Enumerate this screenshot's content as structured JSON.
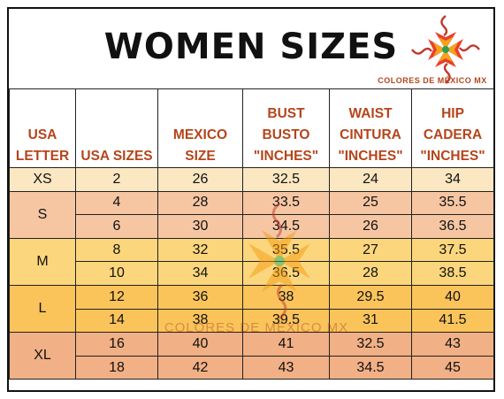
{
  "title": "WOMEN SIZES",
  "brand": "COLORES DE MÉXICO MX",
  "headers": [
    [
      "USA",
      "LETTER"
    ],
    [
      "USA SIZES"
    ],
    [
      "MEXICO",
      "SIZE"
    ],
    [
      "BUST",
      "BUSTO",
      "\"INCHES\""
    ],
    [
      "WAIST",
      "CINTURA",
      "\"INCHES\""
    ],
    [
      "HIP",
      "CADERA",
      "\"INCHES\""
    ]
  ],
  "groups": [
    {
      "letter": "XS",
      "color": "#fbe7c2",
      "rows": [
        [
          "2",
          "26",
          "32.5",
          "24",
          "34"
        ]
      ]
    },
    {
      "letter": "S",
      "color": "#f6c6a3",
      "rows": [
        [
          "4",
          "28",
          "33.5",
          "25",
          "35.5"
        ],
        [
          "6",
          "30",
          "34.5",
          "26",
          "36.5"
        ]
      ]
    },
    {
      "letter": "M",
      "color": "#fcd67c",
      "rows": [
        [
          "8",
          "32",
          "35.5",
          "27",
          "37.5"
        ],
        [
          "10",
          "34",
          "36.5",
          "28",
          "38.5"
        ]
      ]
    },
    {
      "letter": "L",
      "color": "#fac45b",
      "rows": [
        [
          "12",
          "36",
          "38",
          "29.5",
          "40"
        ],
        [
          "14",
          "38",
          "39.5",
          "31",
          "41.5"
        ]
      ]
    },
    {
      "letter": "XL",
      "color": "#f1b085",
      "rows": [
        [
          "16",
          "40",
          "41",
          "32.5",
          "43"
        ],
        [
          "18",
          "42",
          "43",
          "34.5",
          "45"
        ]
      ]
    }
  ],
  "logo_icon": "flower-logo-icon",
  "accent_color": "#b5451b"
}
